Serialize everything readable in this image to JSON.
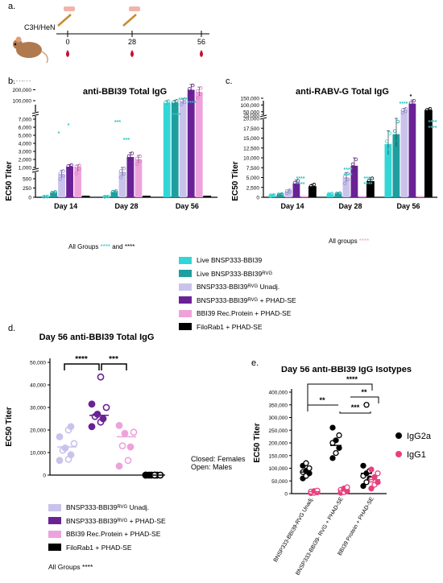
{
  "panel_labels": {
    "a": "a.",
    "b": "b.",
    "c": "c.",
    "d": "d.",
    "e": "e."
  },
  "timeline": {
    "strain": "C3H/HeN",
    "days": [
      "0",
      "28",
      "56"
    ]
  },
  "colors": {
    "live": "#33d6d6",
    "live_rvg": "#1e9e9e",
    "unadj": "#c9c3ec",
    "phad": "#6a2196",
    "rec": "#eea2dc",
    "filo": "#000000",
    "star_cyan": "#29c4c4",
    "igg1": "#e8407c"
  },
  "legend_main": [
    {
      "text": "Live BNSP333-BBI39",
      "sub": "",
      "suffix": "",
      "color": "#33d6d6"
    },
    {
      "text": "Live BNSP333-BBI39",
      "sub": "RVG",
      "suffix": "",
      "color": "#1e9e9e"
    },
    {
      "text": "BNSP333-BBI39",
      "sub": "RVG",
      "suffix": " Unadj.",
      "color": "#c9c3ec"
    },
    {
      "text": "BNSP333-BBI39",
      "sub": "RVG",
      "suffix": " + PHAD-SE",
      "color": "#6a2196"
    },
    {
      "text": "BBI39 Rec.Protein + PHAD-SE",
      "sub": "",
      "suffix": "",
      "color": "#eea2dc"
    },
    {
      "text": "FiloRab1 + PHAD-SE",
      "sub": "",
      "suffix": "",
      "color": "#000000"
    }
  ],
  "legend_d": [
    {
      "text": "BNSP333-BBI39",
      "sub": "RVG",
      "suffix": " Unadj.",
      "color": "#c9c3ec"
    },
    {
      "text": "BNSP333-BBI39",
      "sub": "RVG",
      "suffix": " + PHAD-SE",
      "color": "#6a2196"
    },
    {
      "text": "BBI39 Rec.Protein + PHAD-SE",
      "sub": "",
      "suffix": "",
      "color": "#eea2dc"
    },
    {
      "text": "FiloRab1 + PHAD-SE",
      "sub": "",
      "suffix": "",
      "color": "#000000"
    }
  ],
  "notes": {
    "b_all_groups": "All Groups",
    "b_and": "and ****",
    "c_all_groups": "All groups",
    "d_all_groups": "All Groups ****",
    "d_closed": "Closed: Females",
    "d_open": "Open: Males"
  },
  "chart_data": [
    {
      "id": "b",
      "type": "bar",
      "title": "anti-BBI39 Total IgG",
      "ylabel": "EC50 Titer",
      "categories": [
        "Day 14",
        "Day 28",
        "Day 56"
      ],
      "y_ticks": [
        "0",
        "250",
        "500",
        "1,000",
        "2,000",
        "3,000",
        "4,000",
        "5,000",
        "6,000",
        "7,000",
        "100,000",
        "200,000",
        "300,000"
      ],
      "series": [
        {
          "name": "Live BNSP333-BBI39",
          "values": [
            20,
            20,
            80000
          ]
        },
        {
          "name": "Live BNSP333-BBI39 RVG",
          "values": [
            120,
            140,
            82000
          ]
        },
        {
          "name": "BNSP333-BBI39 RVG Unadj.",
          "values": [
            700,
            800,
            95000
          ]
        },
        {
          "name": "BNSP333-BBI39 RVG + PHAD-SE",
          "values": [
            1100,
            2300,
            200000
          ]
        },
        {
          "name": "BBI39 Rec.Protein + PHAD-SE",
          "values": [
            1050,
            2000,
            180000
          ]
        },
        {
          "name": "FiloRab1 + PHAD-SE",
          "values": [
            0,
            0,
            0
          ]
        }
      ],
      "annotations": [
        "*",
        "*",
        "***",
        "***",
        "****",
        "****",
        "****"
      ]
    },
    {
      "id": "c",
      "type": "bar",
      "title": "anti-RABV-G Total IgG",
      "ylabel": "EC50 Titer",
      "categories": [
        "Day 14",
        "Day 28",
        "Day 56"
      ],
      "y_ticks": [
        "0",
        "2,500",
        "5,000",
        "7,500",
        "10,000",
        "12,500",
        "15,000",
        "17,500",
        "20,000",
        "25,000",
        "50,000",
        "100,000",
        "150,000"
      ],
      "series": [
        {
          "name": "Live BNSP333-BBI39",
          "values": [
            500,
            800,
            13500
          ]
        },
        {
          "name": "Live BNSP333-BBI39 RVG",
          "values": [
            700,
            900,
            16000
          ]
        },
        {
          "name": "BNSP333-BBI39 RVG Unadj.",
          "values": [
            1500,
            5000,
            60000
          ]
        },
        {
          "name": "BNSP333-BBI39 RVG + PHAD-SE",
          "values": [
            3500,
            8000,
            110000
          ]
        },
        {
          "name": "BBI39 Rec.Protein + PHAD-SE",
          "values": [
            0,
            0,
            0
          ]
        },
        {
          "name": "FiloRab1 + PHAD-SE",
          "values": [
            2700,
            4000,
            60000
          ]
        }
      ],
      "annotations": [
        "****",
        "****",
        "****",
        "****",
        "****",
        "****",
        "*"
      ]
    },
    {
      "id": "d",
      "type": "scatter",
      "title": "Day 56 anti-BBI39 Total IgG",
      "ylabel": "EC50 Titer",
      "y_ticks": [
        "0",
        "10,000",
        "20,000",
        "30,000",
        "40,000",
        "50,000"
      ],
      "ylim": [
        0,
        50000
      ],
      "groups": [
        {
          "name": "BNSP333-BBI39 RVG Unadj.",
          "mean": 12500,
          "points": [
            6500,
            7000,
            9000,
            11000,
            12000,
            14000,
            17000,
            20000,
            21500
          ]
        },
        {
          "name": "BNSP333-BBI39 RVG + PHAD-SE",
          "mean": 26500,
          "points": [
            21500,
            23500,
            25000,
            26000,
            27000,
            30000,
            31500,
            43500
          ]
        },
        {
          "name": "BBI39 Rec.Protein + PHAD-SE",
          "mean": 17000,
          "points": [
            4000,
            6500,
            12500,
            13000,
            18500,
            19000,
            22000
          ]
        },
        {
          "name": "FiloRab1 + PHAD-SE",
          "mean": 0,
          "points": [
            0,
            0,
            0,
            0,
            0,
            0,
            0,
            0
          ]
        }
      ],
      "comparisons": [
        {
          "label": "****"
        },
        {
          "label": "***"
        }
      ]
    },
    {
      "id": "e",
      "type": "scatter",
      "title": "Day 56 anti-BBI39 IgG Isotypes",
      "ylabel": "EC50 Titer",
      "y_ticks": [
        "0",
        "50,000",
        "100,000",
        "150,000",
        "200,000",
        "250,000",
        "300,000",
        "350,000",
        "400,000"
      ],
      "ylim": [
        0,
        400000
      ],
      "categories": [
        "BNSP333-BBI39-RVG Unadj.",
        "BNSP333-BBI39- RVG + PHAD-SE",
        "BBI39 Protein + PHAD-SE"
      ],
      "legend": [
        "IgG2a",
        "IgG1"
      ],
      "series": [
        {
          "name": "IgG2a",
          "means": [
            85000,
            190000,
            80000
          ],
          "points": [
            [
              60000,
              70000,
              80000,
              85000,
              90000,
              100000,
              110000,
              120000
            ],
            [
              140000,
              160000,
              180000,
              200000,
              210000,
              230000,
              260000
            ],
            [
              30000,
              45000,
              60000,
              70000,
              80000,
              90000,
              110000,
              350000
            ]
          ]
        },
        {
          "name": "IgG1",
          "means": [
            8000,
            12000,
            55000
          ],
          "points": [
            [
              2000,
              3000,
              5000,
              8000,
              10000,
              12000
            ],
            [
              3000,
              6000,
              10000,
              15000,
              20000,
              25000
            ],
            [
              20000,
              35000,
              45000,
              55000,
              65000,
              80000,
              95000
            ]
          ]
        }
      ],
      "comparisons": [
        {
          "label": "****"
        },
        {
          "label": "**"
        },
        {
          "label": "**"
        },
        {
          "label": "***"
        }
      ]
    }
  ]
}
